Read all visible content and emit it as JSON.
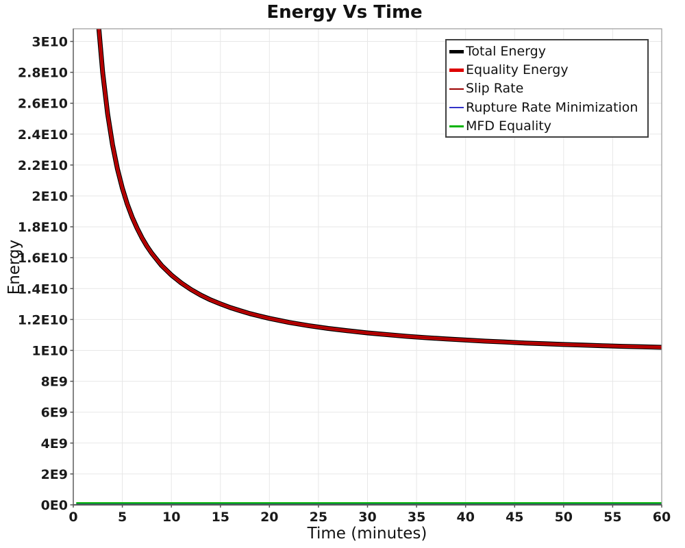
{
  "title": "Energy Vs Time",
  "axes": {
    "x": {
      "label": "Time (minutes)",
      "ticks": [
        0,
        5,
        10,
        15,
        20,
        25,
        30,
        35,
        40,
        45,
        50,
        55,
        60
      ]
    },
    "y": {
      "label": "Energy",
      "tick_labels": [
        "0E0",
        "2E9",
        "4E9",
        "6E9",
        "8E9",
        "1E10",
        "1.2E10",
        "1.4E10",
        "1.6E10",
        "1.8E10",
        "2E10",
        "2.2E10",
        "2.4E10",
        "2.6E10",
        "2.8E10",
        "3E10"
      ],
      "tick_values": [
        0,
        2000000000.0,
        4000000000.0,
        6000000000.0,
        8000000000.0,
        10000000000.0,
        12000000000.0,
        14000000000.0,
        16000000000.0,
        18000000000.0,
        20000000000.0,
        22000000000.0,
        24000000000.0,
        26000000000.0,
        28000000000.0,
        30000000000.0
      ]
    }
  },
  "legend": {
    "position": "top-right",
    "entries": [
      {
        "label": "Total Energy",
        "color": "#000000",
        "swatch_thickness": 5
      },
      {
        "label": "Equality Energy",
        "color": "#dd0000",
        "swatch_thickness": 5
      },
      {
        "label": "Slip Rate",
        "color": "#9b0000",
        "swatch_thickness": 2.5
      },
      {
        "label": "Rupture Rate Minimization",
        "color": "#3232c8",
        "swatch_thickness": 2.5
      },
      {
        "label": "MFD Equality",
        "color": "#00b300",
        "swatch_thickness": 2.5
      }
    ]
  },
  "colors": {
    "grid": "#e7e7e7",
    "plot_border": "#9a9a9a",
    "axis_left": "#787878",
    "axis_bottom": "#5a5a5a",
    "tick": "#555555",
    "tick_label": "#1a1a1a"
  },
  "chart_data": {
    "type": "line",
    "title": "Energy Vs Time",
    "xlabel": "Time (minutes)",
    "ylabel": "Energy",
    "xlim": [
      0,
      60
    ],
    "ylim": [
      0,
      30820000000.0
    ],
    "grid": true,
    "legend_position": "top-right",
    "series": [
      {
        "name": "Total Energy",
        "color": "#000000",
        "line_width": 7,
        "x": [
          2.5,
          2.61,
          3,
          3.5,
          4,
          4.5,
          5,
          5.5,
          6,
          6.5,
          7,
          7.5,
          8,
          9,
          10,
          11,
          12,
          13,
          14,
          15,
          16,
          17,
          18,
          19,
          20,
          22,
          24,
          26,
          28,
          30,
          32,
          34,
          36,
          38,
          40,
          42,
          44,
          46,
          48,
          50,
          52,
          54,
          56,
          58,
          60
        ],
        "y": [
          31740000000.0,
          30790000000.0,
          27990000000.0,
          25320000000.0,
          23310000000.0,
          21750000000.0,
          20500000000.0,
          19480000000.0,
          18630000000.0,
          17910000000.0,
          17290000000.0,
          16750000000.0,
          16290000000.0,
          15500000000.0,
          14880000000.0,
          14370000000.0,
          13940000000.0,
          13580000000.0,
          13270000000.0,
          13010000000.0,
          12770000000.0,
          12570000000.0,
          12380000000.0,
          12220000000.0,
          12070000000.0,
          11810000000.0,
          11600000000.0,
          11420000000.0,
          11270000000.0,
          11130000000.0,
          11020000000.0,
          10910000000.0,
          10820000000.0,
          10740000000.0,
          10670000000.0,
          10600000000.0,
          10540000000.0,
          10480000000.0,
          10430000000.0,
          10380000000.0,
          10340000000.0,
          10300000000.0,
          10260000000.0,
          10230000000.0,
          10200000000.0
        ]
      },
      {
        "name": "Equality Energy",
        "color": "#dd0000",
        "line_width": 4.4,
        "x": [
          2.5,
          2.61,
          3,
          3.5,
          4,
          4.5,
          5,
          5.5,
          6,
          6.5,
          7,
          7.5,
          8,
          9,
          10,
          11,
          12,
          13,
          14,
          15,
          16,
          17,
          18,
          19,
          20,
          22,
          24,
          26,
          28,
          30,
          32,
          34,
          36,
          38,
          40,
          42,
          44,
          46,
          48,
          50,
          52,
          54,
          56,
          58,
          60
        ],
        "y": [
          31740000000.0,
          30790000000.0,
          27990000000.0,
          25320000000.0,
          23310000000.0,
          21750000000.0,
          20500000000.0,
          19480000000.0,
          18630000000.0,
          17910000000.0,
          17290000000.0,
          16750000000.0,
          16290000000.0,
          15500000000.0,
          14880000000.0,
          14370000000.0,
          13940000000.0,
          13580000000.0,
          13270000000.0,
          13010000000.0,
          12770000000.0,
          12570000000.0,
          12380000000.0,
          12220000000.0,
          12070000000.0,
          11810000000.0,
          11600000000.0,
          11420000000.0,
          11270000000.0,
          11130000000.0,
          11020000000.0,
          10910000000.0,
          10820000000.0,
          10740000000.0,
          10670000000.0,
          10600000000.0,
          10540000000.0,
          10480000000.0,
          10430000000.0,
          10380000000.0,
          10340000000.0,
          10300000000.0,
          10260000000.0,
          10230000000.0,
          10200000000.0
        ]
      },
      {
        "name": "Slip Rate",
        "color": "#9b0000",
        "line_width": 1.8,
        "x": [
          2.5,
          2.61,
          3,
          3.5,
          4,
          4.5,
          5,
          5.5,
          6,
          6.5,
          7,
          7.5,
          8,
          9,
          10,
          11,
          12,
          13,
          14,
          15,
          16,
          17,
          18,
          19,
          20,
          22,
          24,
          26,
          28,
          30,
          32,
          34,
          36,
          38,
          40,
          42,
          44,
          46,
          48,
          50,
          52,
          54,
          56,
          58,
          60
        ],
        "y": [
          31740000000.0,
          30790000000.0,
          27990000000.0,
          25320000000.0,
          23310000000.0,
          21750000000.0,
          20500000000.0,
          19480000000.0,
          18630000000.0,
          17910000000.0,
          17290000000.0,
          16750000000.0,
          16290000000.0,
          15500000000.0,
          14880000000.0,
          14370000000.0,
          13940000000.0,
          13580000000.0,
          13270000000.0,
          13010000000.0,
          12770000000.0,
          12570000000.0,
          12380000000.0,
          12220000000.0,
          12070000000.0,
          11810000000.0,
          11600000000.0,
          11420000000.0,
          11270000000.0,
          11130000000.0,
          11020000000.0,
          10910000000.0,
          10820000000.0,
          10740000000.0,
          10670000000.0,
          10600000000.0,
          10540000000.0,
          10480000000.0,
          10430000000.0,
          10380000000.0,
          10340000000.0,
          10300000000.0,
          10260000000.0,
          10230000000.0,
          10200000000.0
        ]
      },
      {
        "name": "Rupture Rate Minimization",
        "color": "#3232c8",
        "line_width": 2.2,
        "x": [
          0.3,
          60
        ],
        "y": [
          40000000.0,
          40000000.0
        ]
      },
      {
        "name": "MFD Equality",
        "color": "#00b300",
        "line_width": 2.4,
        "x": [
          0.3,
          60
        ],
        "y": [
          120000000.0,
          120000000.0
        ]
      }
    ]
  }
}
